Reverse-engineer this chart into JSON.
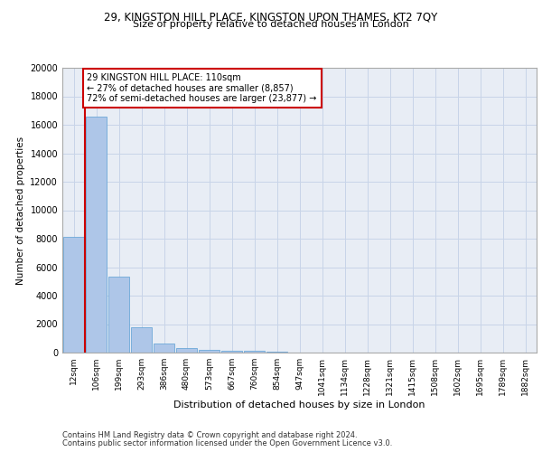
{
  "title_line1": "29, KINGSTON HILL PLACE, KINGSTON UPON THAMES, KT2 7QY",
  "title_line2": "Size of property relative to detached houses in London",
  "xlabel": "Distribution of detached houses by size in London",
  "ylabel": "Number of detached properties",
  "footer_line1": "Contains HM Land Registry data © Crown copyright and database right 2024.",
  "footer_line2": "Contains public sector information licensed under the Open Government Licence v3.0.",
  "annotation_line1": "29 KINGSTON HILL PLACE: 110sqm",
  "annotation_line2": "← 27% of detached houses are smaller (8,857)",
  "annotation_line3": "72% of semi-detached houses are larger (23,877) →",
  "bar_labels": [
    "12sqm",
    "106sqm",
    "199sqm",
    "293sqm",
    "386sqm",
    "480sqm",
    "573sqm",
    "667sqm",
    "760sqm",
    "854sqm",
    "947sqm",
    "1041sqm",
    "1134sqm",
    "1228sqm",
    "1321sqm",
    "1415sqm",
    "1508sqm",
    "1602sqm",
    "1695sqm",
    "1789sqm",
    "1882sqm"
  ],
  "bar_values": [
    8100,
    16600,
    5350,
    1750,
    650,
    330,
    200,
    150,
    120,
    90,
    0,
    0,
    0,
    0,
    0,
    0,
    0,
    0,
    0,
    0,
    0
  ],
  "bar_color": "#aec6e8",
  "bar_edge_color": "#5a9fd4",
  "vline_color": "#cc0000",
  "vline_x": 0.5,
  "annotation_box_color": "#cc0000",
  "annotation_box_facecolor": "white",
  "ylim": [
    0,
    20000
  ],
  "yticks": [
    0,
    2000,
    4000,
    6000,
    8000,
    10000,
    12000,
    14000,
    16000,
    18000,
    20000
  ],
  "grid_color": "#c8d4e8",
  "plot_bg_color": "#e8edf5",
  "title1_fontsize": 8.5,
  "title2_fontsize": 8.0,
  "ylabel_fontsize": 7.5,
  "xlabel_fontsize": 8.0,
  "tick_fontsize": 6.5,
  "ytick_fontsize": 7.0,
  "annotation_fontsize": 7.0,
  "footer_fontsize": 6.0
}
